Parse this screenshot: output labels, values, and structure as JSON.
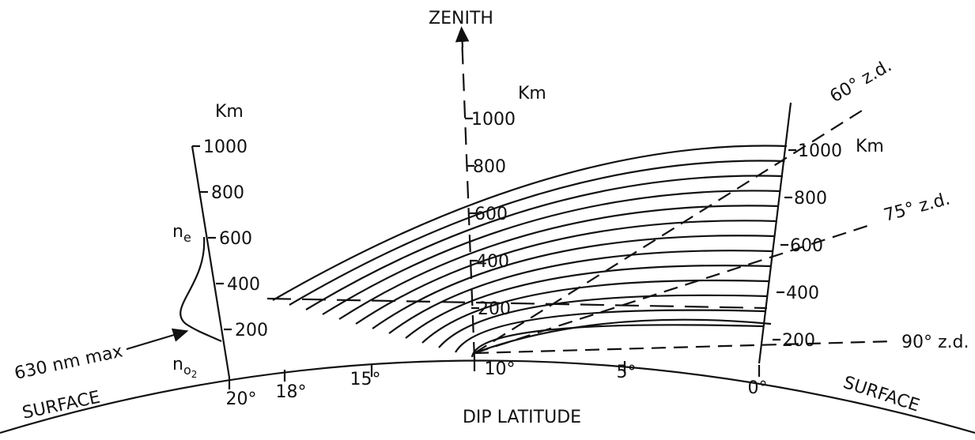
{
  "zenith": "ZENITH",
  "left_axis": {
    "unit": "Km",
    "ticks": [
      "1000",
      "800",
      "600",
      "400",
      "200"
    ]
  },
  "middle_axis": {
    "unit": "Km",
    "ticks": [
      "1000",
      "800",
      "600",
      "400",
      "200"
    ]
  },
  "right_axis": {
    "unit": "Km",
    "ticks": [
      "1000",
      "800",
      "600",
      "400",
      "200"
    ]
  },
  "zenith_angles": [
    "60° z.d.",
    "75° z.d.",
    "90° z.d."
  ],
  "profile": {
    "ne": {
      "base": "n",
      "sub": "e"
    },
    "no2": {
      "base": "n",
      "sub": "o",
      "sub2": "2"
    },
    "max_label": "630 nm max"
  },
  "surface_left": "SURFACE",
  "surface_right": "SURFACE",
  "x_label": "DIP LATITUDE",
  "latitudes": [
    "20°",
    "18°",
    "15°",
    "10°",
    "5°",
    "0°"
  ]
}
